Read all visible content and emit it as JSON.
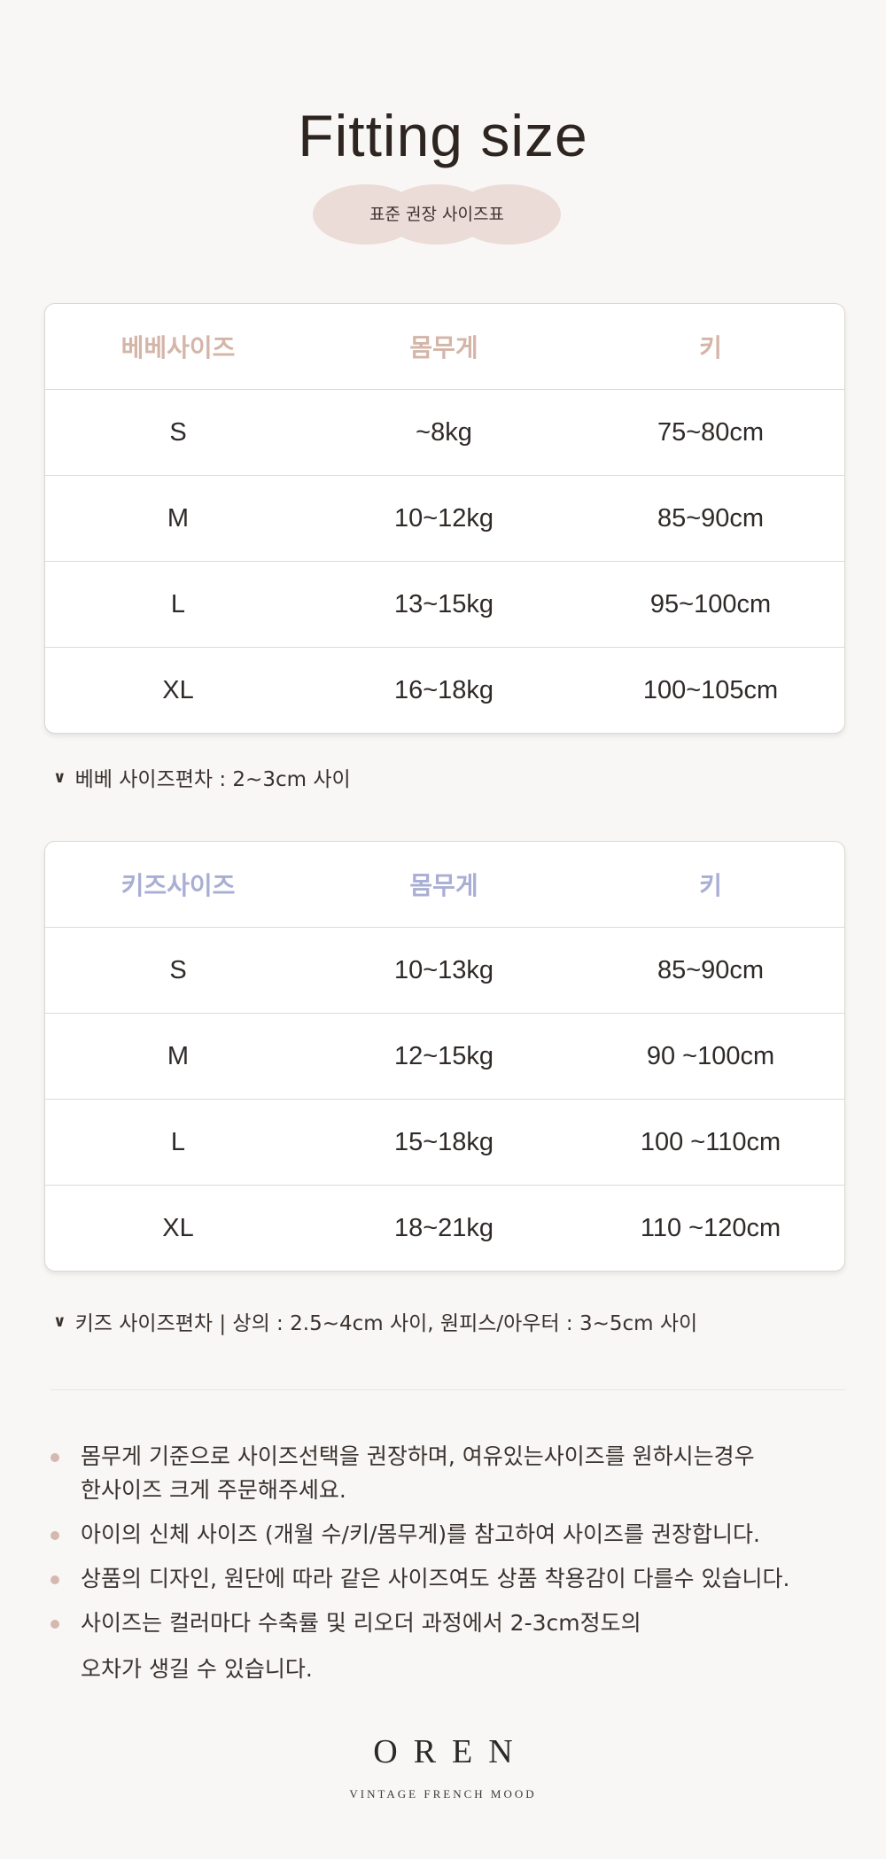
{
  "header": {
    "title": "Fitting size",
    "subtitle": "표준 권장 사이즈표"
  },
  "colors": {
    "background": "#f8f7f5",
    "bebe_header": "#d4b5a8",
    "kids_header": "#a9aed4",
    "pill": "#ecdcd8",
    "bullet": "#d5b9b0"
  },
  "bebe_table": {
    "headers": [
      "베베사이즈",
      "몸무게",
      "키"
    ],
    "rows": [
      [
        "S",
        "~8kg",
        "75~80cm"
      ],
      [
        "M",
        "10~12kg",
        "85~90cm"
      ],
      [
        "L",
        "13~15kg",
        "95~100cm"
      ],
      [
        "XL",
        "16~18kg",
        "100~105cm"
      ]
    ],
    "note": "베베 사이즈편차 : 2~3cm 사이"
  },
  "kids_table": {
    "headers": [
      "키즈사이즈",
      "몸무게",
      "키"
    ],
    "rows": [
      [
        "S",
        "10~13kg",
        "85~90cm"
      ],
      [
        "M",
        "12~15kg",
        "90 ~100cm"
      ],
      [
        "L",
        "15~18kg",
        "100 ~110cm"
      ],
      [
        "XL",
        "18~21kg",
        "110 ~120cm"
      ]
    ],
    "note": "키즈 사이즈편차  |  상의 : 2.5~4cm 사이, 원피스/아우터 : 3~5cm 사이"
  },
  "notes": [
    {
      "l1": "몸무게 기준으로 사이즈선택을 권장하며, 여유있는사이즈를 원하시는경우",
      "l2": "한사이즈 크게 주문해주세요."
    },
    {
      "l1": "아이의 신체 사이즈 (개월 수/키/몸무게)를 참고하여 사이즈를 권장합니다."
    },
    {
      "l1": "상품의 디자인, 원단에 따라 같은 사이즈여도 상품 착용감이 다를수 있습니다."
    },
    {
      "l1": "사이즈는 컬러마다 수축률 및 리오더 과정에서 2-3cm정도의",
      "l2": "오차가 생길 수 있습니다."
    }
  ],
  "brand": {
    "logo": "OREN",
    "tagline": "VINTAGE FRENCH MOOD"
  },
  "icons": {
    "note_marker": "chevron-down-icon"
  }
}
